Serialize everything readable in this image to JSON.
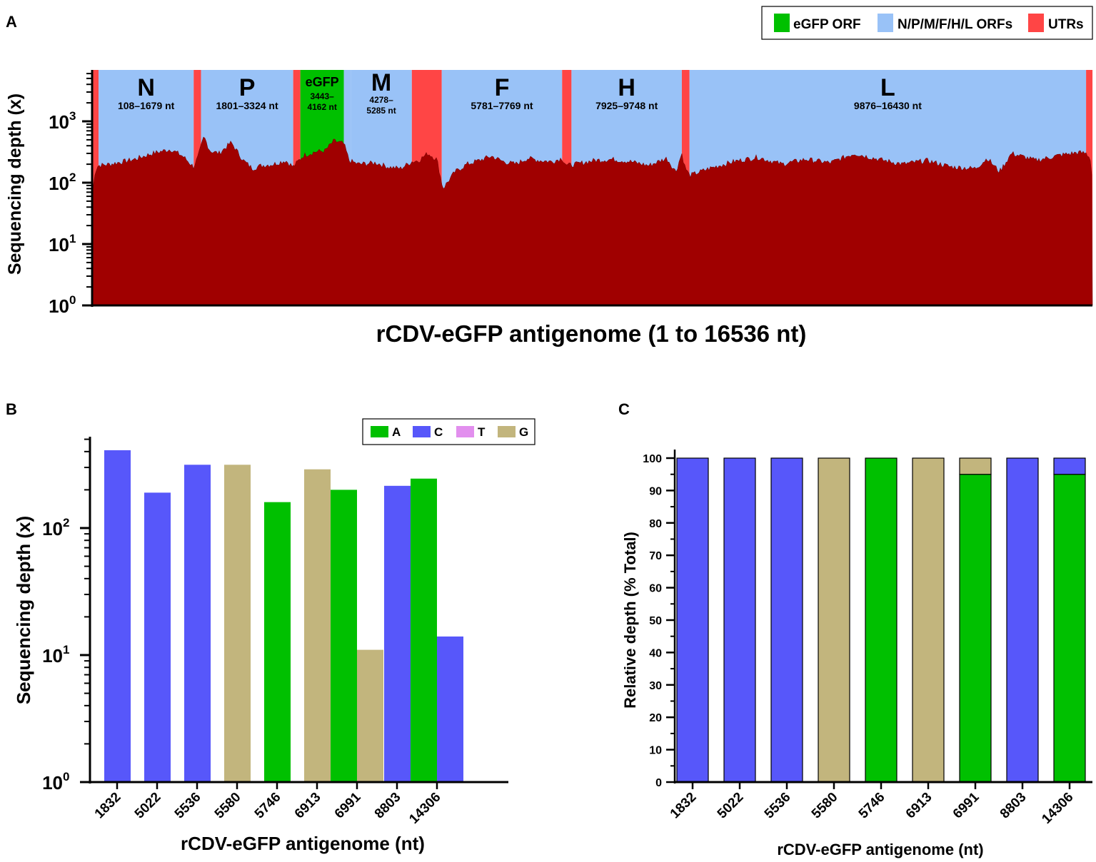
{
  "panel_labels": {
    "a": "A",
    "b": "B",
    "c": "C"
  },
  "colors": {
    "egfp": "#00c000",
    "orf": "#99c2f7",
    "utr": "#ff4545",
    "depth": "#a00000",
    "A": "#00c000",
    "C": "#5757fa",
    "T": "#e28fee",
    "G": "#c2b57d"
  },
  "chart_data": [
    {
      "id": "A",
      "type": "area",
      "yscale": "log",
      "ylim": [
        1,
        6000
      ],
      "xlim": [
        1,
        16536
      ],
      "xlabel": "rCDV-eGFP antigenome (1 to 16536 nt)",
      "ylabel": "Sequencing depth (x)",
      "yticks": [
        {
          "value": 1,
          "base": "10",
          "exp": "0"
        },
        {
          "value": 10,
          "base": "10",
          "exp": "1"
        },
        {
          "value": 100,
          "base": "10",
          "exp": "2"
        },
        {
          "value": 1000,
          "base": "10",
          "exp": "3"
        }
      ],
      "legend": [
        {
          "label": "eGFP ORF",
          "color_key": "egfp"
        },
        {
          "label": "N/P/M/F/H/L ORFs",
          "color_key": "orf"
        },
        {
          "label": "UTRs",
          "color_key": "utr"
        }
      ],
      "regions": [
        {
          "start": 1,
          "end": 107,
          "kind": "utr"
        },
        {
          "start": 108,
          "end": 1679,
          "kind": "orf",
          "name": "N",
          "range": "108–1679 nt"
        },
        {
          "start": 1680,
          "end": 1800,
          "kind": "utr"
        },
        {
          "start": 1801,
          "end": 3324,
          "kind": "orf",
          "name": "P",
          "range": "1801–3324 nt"
        },
        {
          "start": 3325,
          "end": 3442,
          "kind": "utr"
        },
        {
          "start": 3443,
          "end": 4162,
          "kind": "egfp",
          "name": "eGFP",
          "range1": "3443–",
          "range2": "4162 nt"
        },
        {
          "start": 4163,
          "end": 4277,
          "kind": "orf"
        },
        {
          "start": 4278,
          "end": 5285,
          "kind": "orf",
          "name": "M",
          "range1": "4278–",
          "range2": "5285 nt"
        },
        {
          "start": 5286,
          "end": 5780,
          "kind": "utr"
        },
        {
          "start": 5781,
          "end": 7769,
          "kind": "orf",
          "name": "F",
          "range": "5781–7769 nt"
        },
        {
          "start": 7770,
          "end": 7924,
          "kind": "utr"
        },
        {
          "start": 7925,
          "end": 9748,
          "kind": "orf",
          "name": "H",
          "range": "7925–9748 nt"
        },
        {
          "start": 9749,
          "end": 9875,
          "kind": "utr"
        },
        {
          "start": 9876,
          "end": 16430,
          "kind": "orf",
          "name": "L",
          "range": "9876–16430 nt"
        },
        {
          "start": 16431,
          "end": 16536,
          "kind": "utr"
        }
      ],
      "depth_profile": {
        "x": [
          1,
          50,
          100,
          300,
          700,
          1000,
          1300,
          1500,
          1679,
          1750,
          1850,
          1950,
          2100,
          2300,
          2500,
          2650,
          2800,
          3000,
          3200,
          3324,
          3400,
          3500,
          3700,
          3850,
          4000,
          4162,
          4250,
          4400,
          4700,
          4900,
          5100,
          5285,
          5400,
          5550,
          5700,
          5800,
          6000,
          6200,
          6400,
          6600,
          6800,
          7000,
          7200,
          7400,
          7600,
          7769,
          7850,
          8000,
          8300,
          8600,
          8900,
          9200,
          9500,
          9650,
          9748,
          9800,
          9876,
          10200,
          10600,
          11000,
          11400,
          11800,
          12200,
          12600,
          13000,
          13400,
          13800,
          14200,
          14600,
          14800,
          15000,
          15200,
          15600,
          16000,
          16300,
          16430,
          16500,
          16536
        ],
        "y": [
          60,
          150,
          190,
          200,
          240,
          300,
          350,
          270,
          180,
          260,
          560,
          330,
          300,
          450,
          230,
          170,
          190,
          200,
          230,
          180,
          220,
          280,
          320,
          330,
          480,
          430,
          230,
          200,
          210,
          180,
          170,
          220,
          230,
          300,
          240,
          80,
          150,
          200,
          230,
          270,
          220,
          200,
          250,
          230,
          220,
          250,
          190,
          200,
          230,
          240,
          220,
          190,
          250,
          150,
          300,
          180,
          130,
          170,
          220,
          260,
          200,
          240,
          210,
          300,
          240,
          200,
          230,
          180,
          170,
          250,
          150,
          300,
          230,
          280,
          310,
          300,
          250,
          100
        ]
      }
    },
    {
      "id": "B",
      "type": "bar",
      "yscale": "log",
      "ylim": [
        1,
        500
      ],
      "xlabel": "rCDV-eGFP antigenome (nt)",
      "ylabel": "Sequencing depth (x)",
      "categories": [
        "1832",
        "5022",
        "5536",
        "5580",
        "5746",
        "6913",
        "6991",
        "8803",
        "14306"
      ],
      "yticks": [
        {
          "value": 1,
          "base": "10",
          "exp": "0"
        },
        {
          "value": 10,
          "base": "10",
          "exp": "1"
        },
        {
          "value": 100,
          "base": "10",
          "exp": "2"
        }
      ],
      "legend": [
        "A",
        "C",
        "T",
        "G"
      ],
      "bars": [
        {
          "category": "1832",
          "base": "C",
          "value": 410,
          "slot": "center"
        },
        {
          "category": "5022",
          "base": "C",
          "value": 190,
          "slot": "center"
        },
        {
          "category": "5536",
          "base": "C",
          "value": 315,
          "slot": "center"
        },
        {
          "category": "5580",
          "base": "G",
          "value": 315,
          "slot": "center"
        },
        {
          "category": "5746",
          "base": "A",
          "value": 160,
          "slot": "center"
        },
        {
          "category": "6913",
          "base": "G",
          "value": 290,
          "slot": "center"
        },
        {
          "category": "6991",
          "base": "A",
          "value": 200,
          "slot": "left"
        },
        {
          "category": "6991",
          "base": "G",
          "value": 11,
          "slot": "right"
        },
        {
          "category": "8803",
          "base": "C",
          "value": 215,
          "slot": "center"
        },
        {
          "category": "14306",
          "base": "A",
          "value": 245,
          "slot": "left"
        },
        {
          "category": "14306",
          "base": "C",
          "value": 14,
          "slot": "right"
        }
      ]
    },
    {
      "id": "C",
      "type": "bar",
      "stacked": true,
      "ylim": [
        0,
        100
      ],
      "xlabel": "rCDV-eGFP antigenome (nt)",
      "ylabel": "Relative depth (% Total)",
      "categories": [
        "1832",
        "5022",
        "5536",
        "5580",
        "5746",
        "6913",
        "6991",
        "8803",
        "14306"
      ],
      "yticks": [
        0,
        10,
        20,
        30,
        40,
        50,
        60,
        70,
        80,
        90,
        100
      ],
      "stacks": [
        [
          {
            "base": "C",
            "value": 100
          }
        ],
        [
          {
            "base": "C",
            "value": 100
          }
        ],
        [
          {
            "base": "C",
            "value": 100
          }
        ],
        [
          {
            "base": "G",
            "value": 100
          }
        ],
        [
          {
            "base": "A",
            "value": 100
          }
        ],
        [
          {
            "base": "G",
            "value": 100
          }
        ],
        [
          {
            "base": "A",
            "value": 95
          },
          {
            "base": "G",
            "value": 5
          }
        ],
        [
          {
            "base": "C",
            "value": 100
          }
        ],
        [
          {
            "base": "A",
            "value": 95
          },
          {
            "base": "C",
            "value": 5
          }
        ]
      ]
    }
  ]
}
